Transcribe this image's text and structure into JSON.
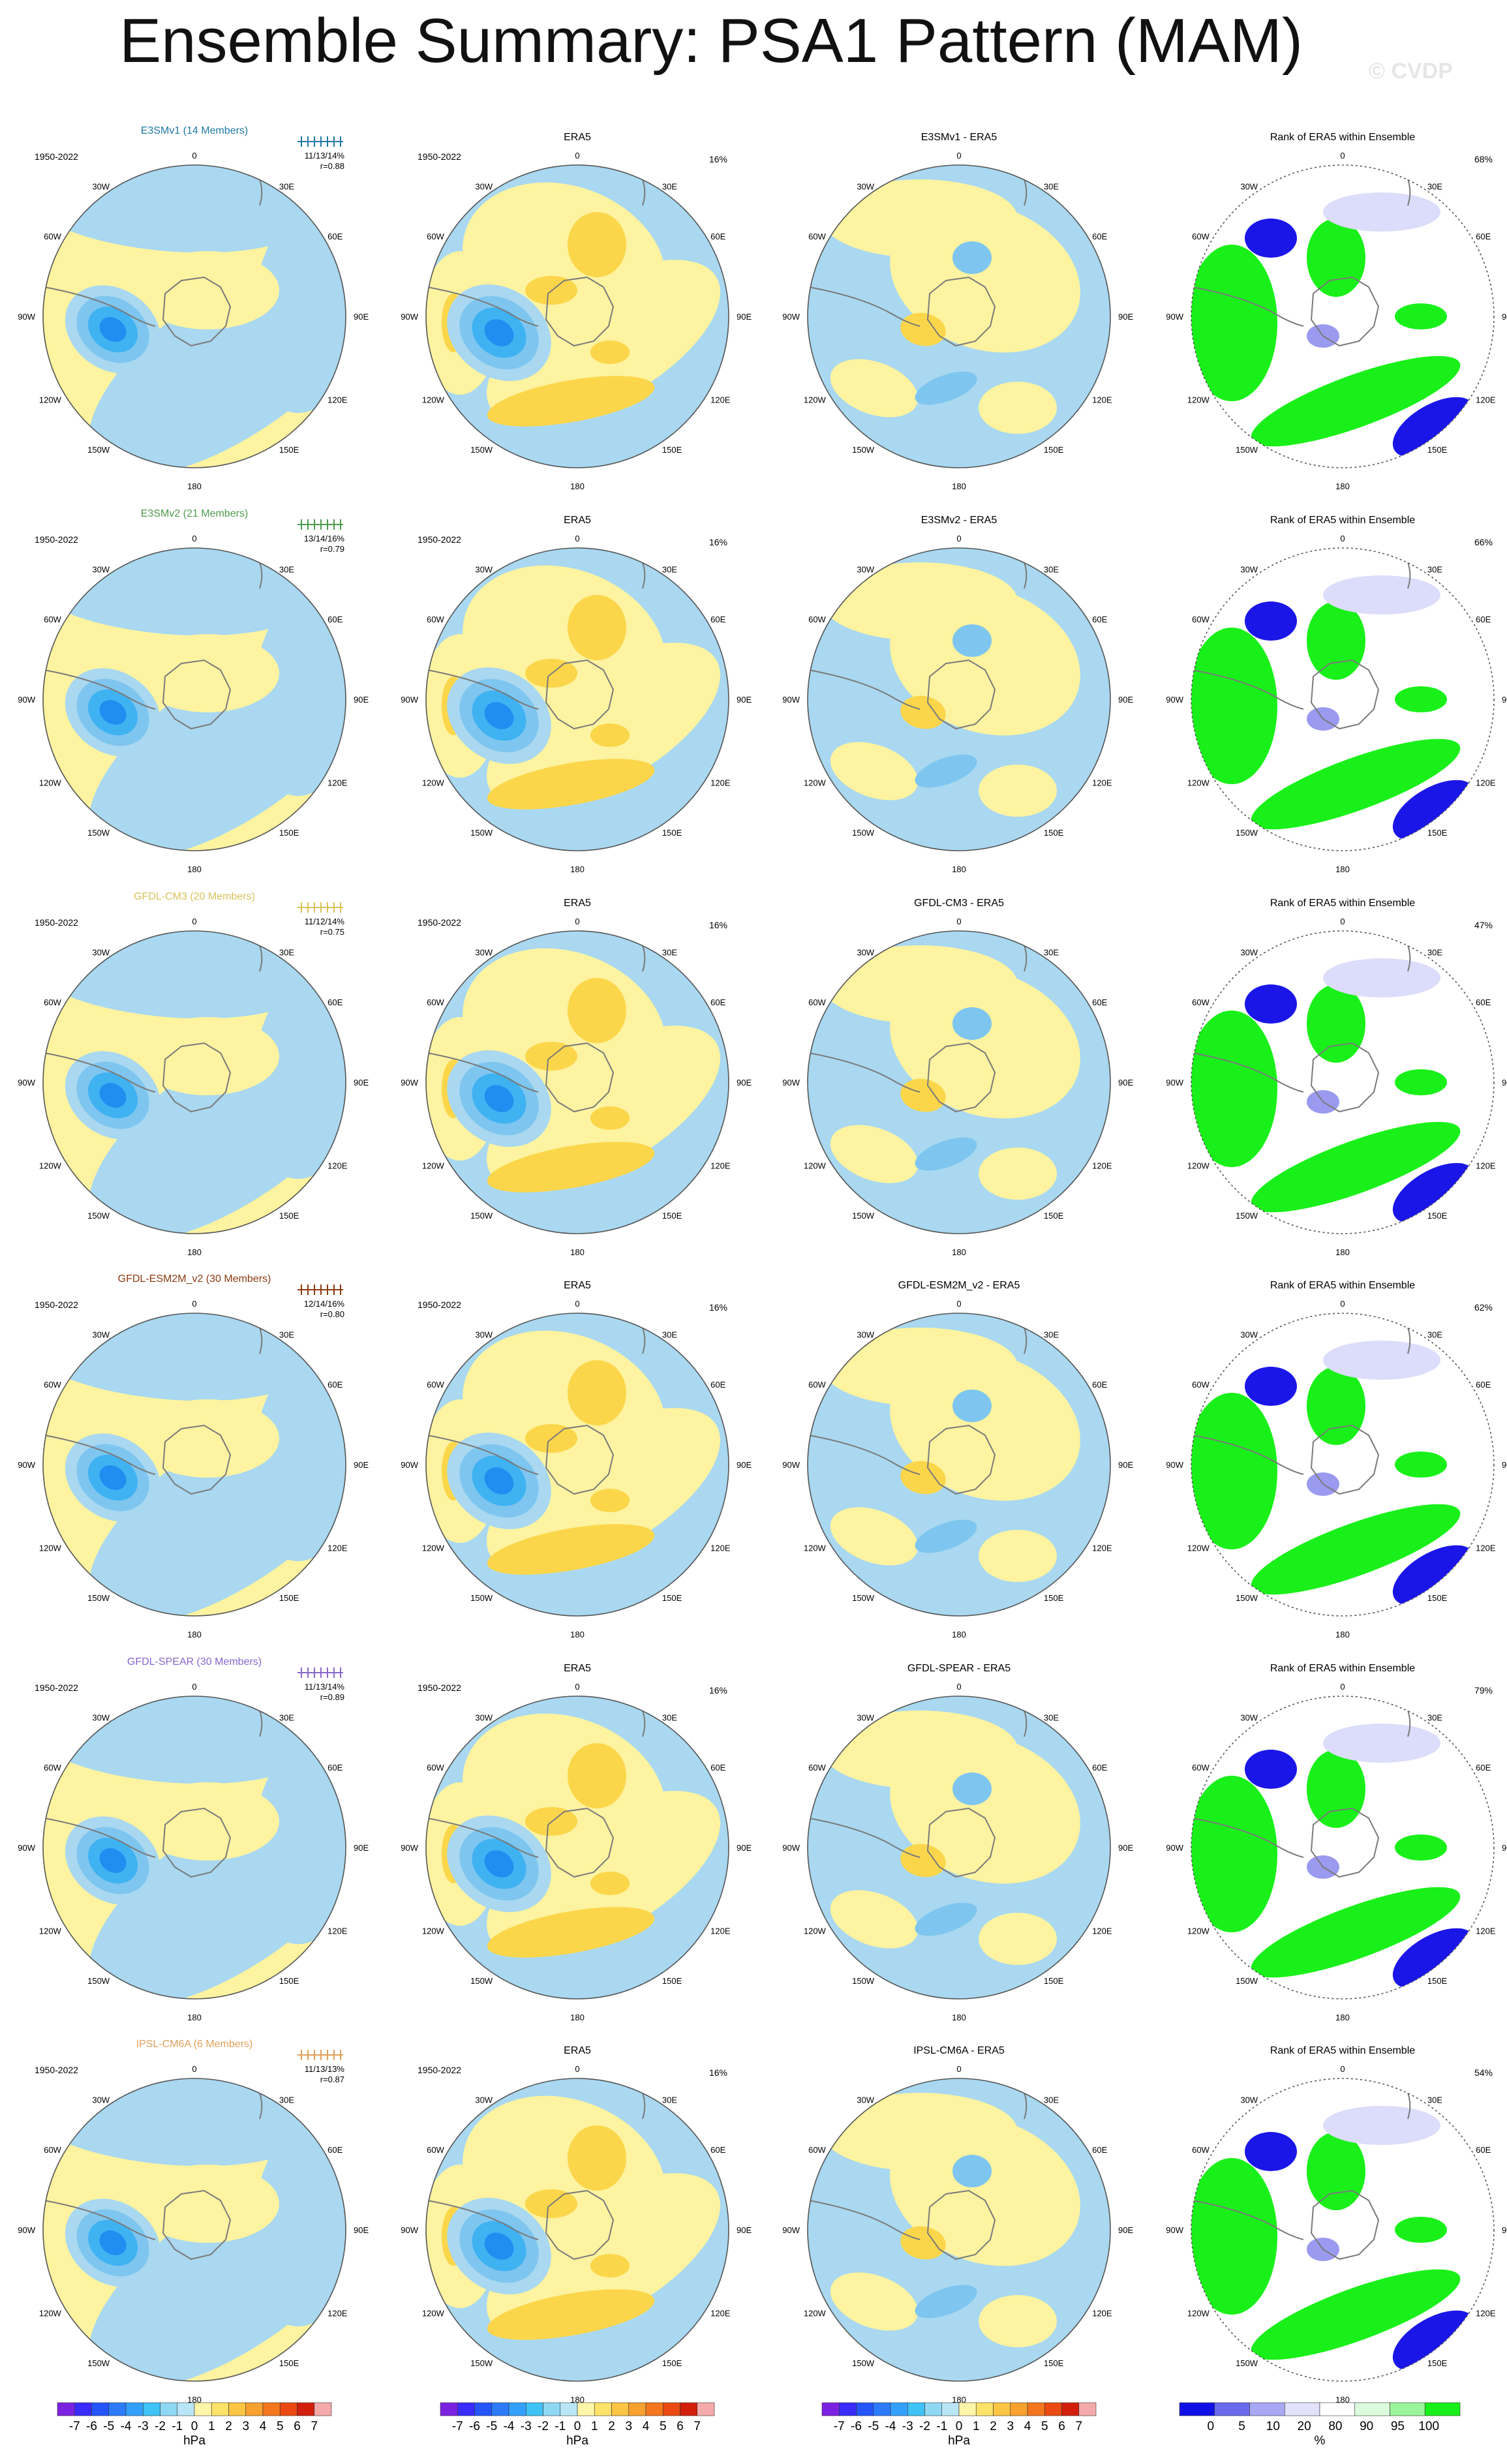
{
  "title": "Ensemble Summary: PSA1 Pattern (MAM)",
  "watermark": "© CVDP",
  "colors": {
    "neg1": "#a9d8f0",
    "neg2": "#7ec6ef",
    "neg3": "#3fb2f2",
    "neg4": "#1e8ef0",
    "pos1": "#fdf3a0",
    "pos2": "#fcd64a",
    "pos3": "#fbb72a",
    "rank_low": "#1a16e8",
    "rank_mid": "#9a9af0",
    "rank_pale": "#dcdcfb",
    "rank_green": "#19f019",
    "rank_pale_green": "#c8f8c8",
    "coast": "#7a7a7a",
    "frame": "#555555"
  },
  "chart_data": {
    "type": "polar contour map grid",
    "region": "Southern Hemisphere polar stereographic",
    "lon_labels": [
      "0",
      "30E",
      "60E",
      "90E",
      "120E",
      "150E",
      "180",
      "150W",
      "120W",
      "90W",
      "60W",
      "30W"
    ],
    "rows": [
      {
        "model": "E3SMv1 (14 Members)",
        "model_color": "#1f78a4",
        "period": "1950-2022",
        "stats": "11/13/14%",
        "r": "r=0.88",
        "obs_pct": "16%",
        "diff_title": "E3SMv1 - ERA5",
        "rank_pct": "68%"
      },
      {
        "model": "E3SMv2 (21 Members)",
        "model_color": "#4e9a4e",
        "period": "1950-2022",
        "stats": "13/14/16%",
        "r": "r=0.79",
        "obs_pct": "16%",
        "diff_title": "E3SMv2 - ERA5",
        "rank_pct": "66%"
      },
      {
        "model": "GFDL-CM3 (20 Members)",
        "model_color": "#d7c15a",
        "period": "1950-2022",
        "stats": "11/12/14%",
        "r": "r=0.75",
        "obs_pct": "16%",
        "diff_title": "GFDL-CM3 - ERA5",
        "rank_pct": "47%"
      },
      {
        "model": "GFDL-ESM2M_v2 (30 Members)",
        "model_color": "#8b3a0e",
        "period": "1950-2022",
        "stats": "12/14/16%",
        "r": "r=0.80",
        "obs_pct": "16%",
        "diff_title": "GFDL-ESM2M_v2 - ERA5",
        "rank_pct": "62%"
      },
      {
        "model": "GFDL-SPEAR (30 Members)",
        "model_color": "#8866cc",
        "period": "1950-2022",
        "stats": "11/13/14%",
        "r": "r=0.89",
        "obs_pct": "16%",
        "diff_title": "GFDL-SPEAR - ERA5",
        "rank_pct": "79%"
      },
      {
        "model": "IPSL-CM6A (6 Members)",
        "model_color": "#e0a15a",
        "period": "1950-2022",
        "stats": "11/13/13%",
        "r": "r=0.87",
        "obs_pct": "16%",
        "diff_title": "IPSL-CM6A - ERA5",
        "rank_pct": "54%"
      }
    ],
    "obs_title": "ERA5",
    "rank_title": "Rank of ERA5 within Ensemble",
    "colorbar": {
      "levels": [
        "-7",
        "-6",
        "-5",
        "-4",
        "-3",
        "-2",
        "-1",
        "0",
        "1",
        "2",
        "3",
        "4",
        "5",
        "6",
        "7"
      ],
      "unit": "hPa",
      "colors": [
        "#7b22e0",
        "#3a2cff",
        "#2455ff",
        "#2c7bff",
        "#33a0ff",
        "#3fc2f6",
        "#8fd8f4",
        "#b9e6f7",
        "#fff5a8",
        "#fde26a",
        "#fcc544",
        "#f8a12f",
        "#f4771d",
        "#ea4a12",
        "#d21e0c",
        "#f4aaaa"
      ]
    },
    "rank_colorbar": {
      "levels": [
        "0",
        "5",
        "10",
        "20",
        "80",
        "90",
        "95",
        "100"
      ],
      "unit": "%",
      "colors": [
        "#1010e6",
        "#6a6aee",
        "#a8a8f4",
        "#e2e2fb",
        "#ffffff",
        "#dcfadc",
        "#9af59a",
        "#19f019"
      ]
    }
  }
}
